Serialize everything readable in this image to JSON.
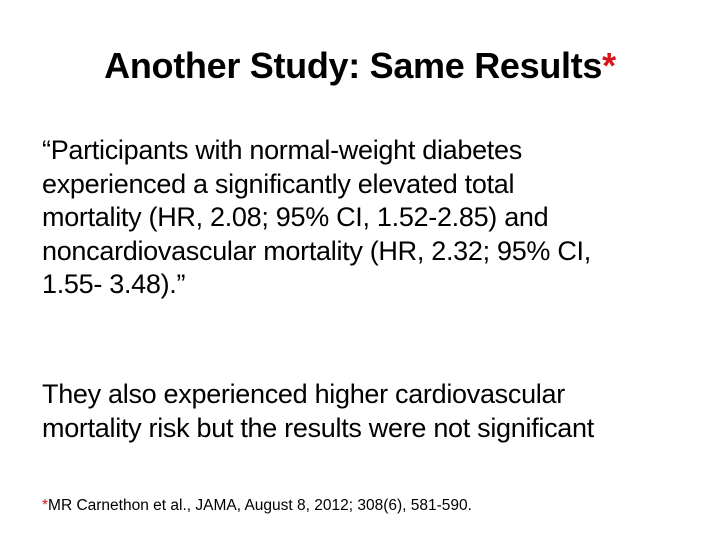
{
  "slide": {
    "title": {
      "text": "Another Study: Same Results",
      "marker": "*"
    },
    "quote_lines": [
      "“Participants with normal-weight diabetes",
      "experienced a significantly elevated total",
      "mortality (HR, 2.08; 95% CI, 1.52-2.85) and",
      "noncardiovascular mortality (HR, 2.32; 95% CI,",
      "1.55- 3.48).”"
    ],
    "body_lines": [
      "They also experienced higher cardiovascular",
      "mortality risk but the results were not significant"
    ],
    "reference": {
      "marker": "*",
      "text": "MR Carnethon et al., JAMA, August 8, 2012; 308(6), 581-590."
    }
  },
  "colors": {
    "accent": "#d7141a",
    "text": "#000000",
    "background": "#ffffff"
  }
}
